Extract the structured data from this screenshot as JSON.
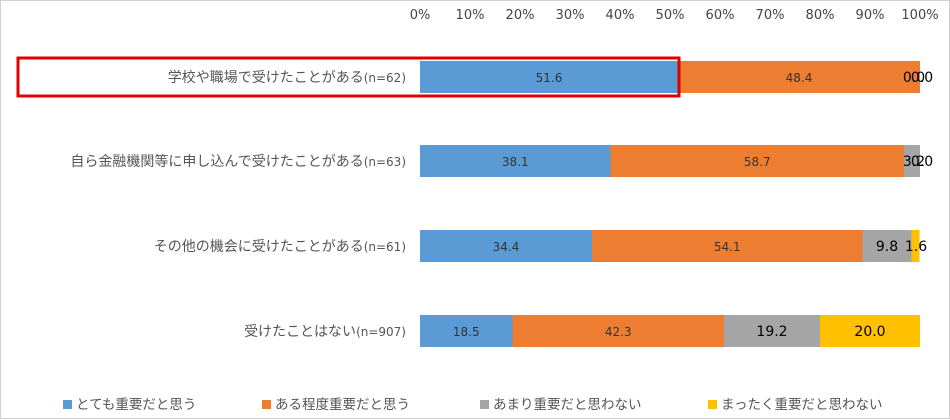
{
  "chart_data": {
    "type": "bar",
    "orientation": "horizontal",
    "stacked": true,
    "percent": true,
    "categories": [
      {
        "label": "学校や職場で受けたことがある",
        "n": "(n=62)"
      },
      {
        "label": "自ら金融機関等に申し込んで受けたことがある",
        "n": "(n=63)"
      },
      {
        "label": "その他の機会に受けたことがある",
        "n": "(n=61)"
      },
      {
        "label": "受けたことはない",
        "n": "(n=907)"
      }
    ],
    "series": [
      {
        "name": "とても重要だと思う",
        "color": "#5b9bd5",
        "values": [
          51.6,
          38.1,
          34.4,
          18.5
        ],
        "labels": [
          "51.6",
          "38.1",
          "34.4",
          "18.5"
        ]
      },
      {
        "name": "ある程度重要だと思う",
        "color": "#ed7d31",
        "values": [
          48.4,
          58.7,
          54.1,
          42.3
        ],
        "labels": [
          "48.4",
          "58.7",
          "54.1",
          "42.3"
        ]
      },
      {
        "name": "あまり重要だと思わない",
        "color": "#a5a5a5",
        "values": [
          0.0,
          3.2,
          9.8,
          19.2
        ],
        "labels": [
          "0.0",
          "3.2",
          "9.8",
          "19.2"
        ]
      },
      {
        "name": "まったく重要だと思わない",
        "color": "#ffc000",
        "values": [
          0.0,
          0.0,
          1.6,
          20.0
        ],
        "labels": [
          "0.0",
          "0.0",
          "1.6",
          "20.0"
        ]
      }
    ],
    "xticks": [
      "0%",
      "10%",
      "20%",
      "30%",
      "40%",
      "50%",
      "60%",
      "70%",
      "80%",
      "90%",
      "100%"
    ],
    "xlim": [
      0,
      100
    ],
    "legend_position": "bottom",
    "highlight": {
      "category_index": 0,
      "color": "#e00000"
    }
  }
}
